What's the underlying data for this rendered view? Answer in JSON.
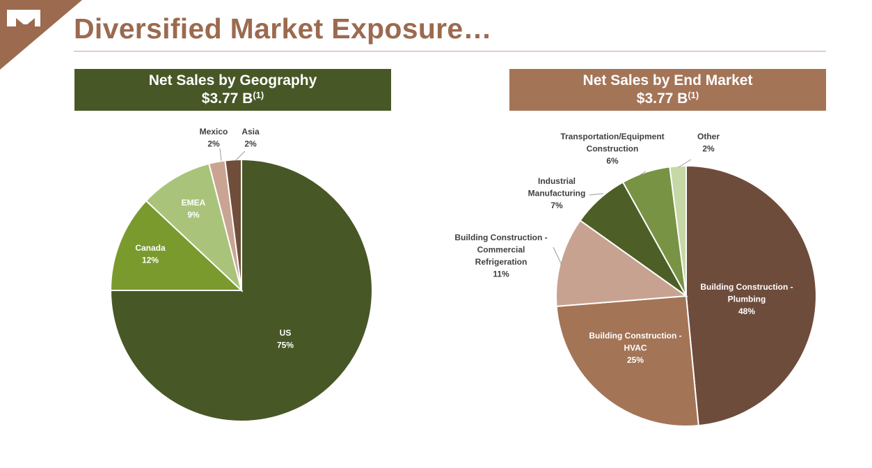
{
  "page": {
    "title": "Diversified Market Exposure…"
  },
  "colors": {
    "title": "#9b6a4f",
    "logo_bg": "#9b6a4f",
    "geo_header": "#485726",
    "end_header": "#a47457"
  },
  "chart_data": [
    {
      "type": "pie",
      "title": "Net Sales by Geography",
      "subtitle_value": "$3.77 B",
      "subtitle_note": "(1)",
      "slices": [
        {
          "label": "US",
          "value": 75,
          "value_label": "75%",
          "color": "#485726"
        },
        {
          "label": "Canada",
          "value": 12,
          "value_label": "12%",
          "color": "#7a9a2e"
        },
        {
          "label": "EMEA",
          "value": 9,
          "value_label": "9%",
          "color": "#a9c47a"
        },
        {
          "label": "Mexico",
          "value": 2,
          "value_label": "2%",
          "color": "#c9a493"
        },
        {
          "label": "Asia",
          "value": 2,
          "value_label": "2%",
          "color": "#704e3b"
        }
      ]
    },
    {
      "type": "pie",
      "title": "Net Sales by End Market",
      "subtitle_value": "$3.77 B",
      "subtitle_note": "(1)",
      "slices": [
        {
          "label": [
            "Building Construction -",
            "Plumbing"
          ],
          "value": 48,
          "value_label": "48%",
          "color": "#6e4c3b"
        },
        {
          "label": [
            "Building Construction -",
            "HVAC"
          ],
          "value": 25,
          "value_label": "25%",
          "color": "#a47457"
        },
        {
          "label": [
            "Building Construction -",
            "Commercial",
            "Refrigeration"
          ],
          "value": 11,
          "value_label": "11%",
          "color": "#c8a291"
        },
        {
          "label": [
            "Industrial",
            "Manufacturing"
          ],
          "value": 7,
          "value_label": "7%",
          "color": "#4d5f26"
        },
        {
          "label": [
            "Transportation/Equipment",
            "Construction"
          ],
          "value": 6,
          "value_label": "6%",
          "color": "#789344"
        },
        {
          "label": [
            "Other"
          ],
          "value": 2,
          "value_label": "2%",
          "color": "#c6d8a5"
        }
      ]
    }
  ]
}
